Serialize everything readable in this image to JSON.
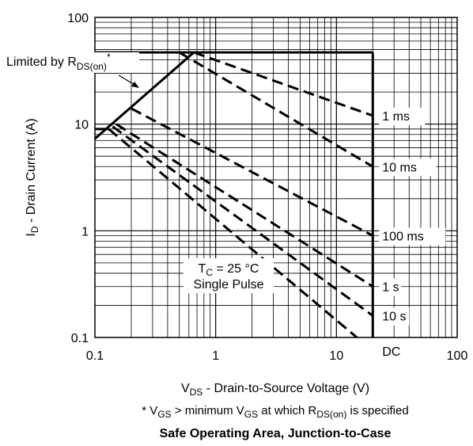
{
  "chart_data": {
    "type": "line",
    "title": "Safe Operating Area, Junction-to-Case",
    "xlabel": {
      "sym": "V",
      "sub": "DS",
      "rest": " - Drain-to-Source Voltage (V)"
    },
    "ylabel": {
      "sym": "I",
      "sub": "D",
      "rest": " - Drain Current (A)"
    },
    "footnote": {
      "parts": [
        {
          "t": "* V",
          "s": false
        },
        {
          "t": "GS",
          "s": true
        },
        {
          "t": " > minimum V",
          "s": false
        },
        {
          "t": "GS",
          "s": true
        },
        {
          "t": " at which R",
          "s": false
        },
        {
          "t": "DS(on)",
          "s": true
        },
        {
          "t": " is specified",
          "s": false
        }
      ]
    },
    "x_scale": "log",
    "y_scale": "log",
    "xlim": [
      0.1,
      100
    ],
    "ylim": [
      0.1,
      100
    ],
    "x_ticks": [
      {
        "v": 0.1,
        "label": "0.1"
      },
      {
        "v": 1,
        "label": "1"
      },
      {
        "v": 10,
        "label": "10"
      },
      {
        "v": 100,
        "label": "100"
      }
    ],
    "y_ticks": [
      {
        "v": 0.1,
        "label": "0.1"
      },
      {
        "v": 1,
        "label": "1"
      },
      {
        "v": 10,
        "label": "10"
      },
      {
        "v": 100,
        "label": "100"
      }
    ],
    "grid": true,
    "boundary": {
      "limited_by_rds_on": [
        [
          0.1,
          7.3
        ],
        [
          0.66,
          47
        ]
      ],
      "current_limit": 47,
      "voltage_limit": 20
    },
    "series": [
      {
        "name": "1 ms",
        "x": [
          0.66,
          20
        ],
        "y": [
          47,
          12
        ],
        "style": "dashed"
      },
      {
        "name": "10 ms",
        "x": [
          0.5,
          20
        ],
        "y": [
          47,
          4
        ],
        "style": "dashed"
      },
      {
        "name": "100 ms",
        "x": [
          0.2,
          20
        ],
        "y": [
          14,
          0.9
        ],
        "style": "dashed"
      },
      {
        "name": "1 s",
        "x": [
          0.15,
          20
        ],
        "y": [
          10,
          0.3
        ],
        "style": "dashed"
      },
      {
        "name": "10 s",
        "x": [
          0.14,
          20
        ],
        "y": [
          9.5,
          0.16
        ],
        "style": "dashed"
      },
      {
        "name": "DC",
        "x": [
          0.13,
          20
        ],
        "y": [
          9,
          0.075
        ],
        "style": "dashed"
      }
    ],
    "annotations": {
      "limited_by": {
        "main": "Limited by R",
        "sub": "DS(on)",
        "sup": "*"
      },
      "condition_line1": {
        "sym": "T",
        "sub": "C",
        "rest": " = 25 °C"
      },
      "condition_line2": "Single Pulse",
      "curve_labels": [
        "1 ms",
        "10 ms",
        "100 ms",
        "1 s",
        "10 s",
        "DC"
      ]
    },
    "colors": {
      "line": "#000000",
      "grid": "#000000",
      "background": "#ffffff"
    }
  }
}
